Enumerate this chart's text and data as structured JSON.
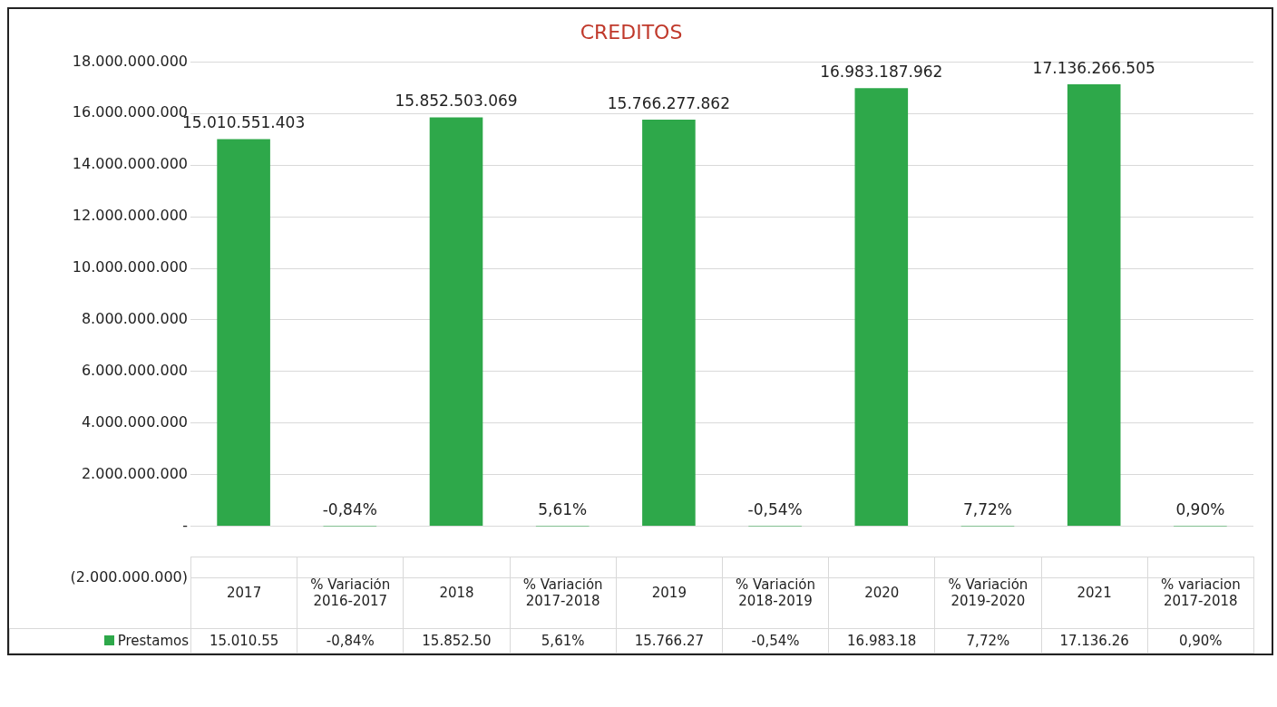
{
  "chart_data": {
    "type": "bar",
    "title": "CREDITOS",
    "categories": [
      "2017",
      "% Variación 2016-2017",
      "2018",
      "% Variación 2017-2018",
      "2019",
      "% Variación 2018-2019",
      "2020",
      "% Variación 2019-2020",
      "2021",
      "% variacion 2017-2018"
    ],
    "series": [
      {
        "name": "Prestamos",
        "color": "#2ea84a",
        "values": [
          15010551403,
          -0.0084,
          15852503069,
          0.0561,
          15766277862,
          -0.0054,
          16983187962,
          0.0772,
          17136266505,
          0.009
        ],
        "value_labels": [
          "15.010.551.403",
          "-0,84%",
          "15.852.503.069",
          "5,61%",
          "15.766.277.862",
          "-0,54%",
          "16.983.187.962",
          "7,72%",
          "17.136.266.505",
          "0,90%"
        ]
      }
    ],
    "annotations": [
      "15.010.55",
      "-0,84%",
      "15.852.50",
      "5,61%",
      "15.766.27",
      "-0,54%",
      "16.983.18",
      "7,72%",
      "17.136.26",
      "0,90%"
    ],
    "ylim": [
      -2000000000,
      18000000000
    ],
    "yticks": [
      {
        "value": -2000000000,
        "label": "(2.000.000.000)"
      },
      {
        "value": 0,
        "label": "-"
      },
      {
        "value": 2000000000,
        "label": "2.000.000.000"
      },
      {
        "value": 4000000000,
        "label": "4.000.000.000"
      },
      {
        "value": 6000000000,
        "label": "6.000.000.000"
      },
      {
        "value": 8000000000,
        "label": "8.000.000.000"
      },
      {
        "value": 10000000000,
        "label": "10.000.000.000"
      },
      {
        "value": 12000000000,
        "label": "12.000.000.000"
      },
      {
        "value": 14000000000,
        "label": "14.000.000.000"
      },
      {
        "value": 16000000000,
        "label": "16.000.000.000"
      },
      {
        "value": 18000000000,
        "label": "18.000.000.000"
      }
    ],
    "grid": "y",
    "legend": "bottom"
  }
}
